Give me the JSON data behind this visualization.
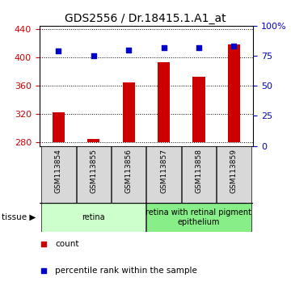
{
  "title": "GDS2556 / Dr.18415.1.A1_at",
  "samples": [
    "GSM113854",
    "GSM113855",
    "GSM113856",
    "GSM113857",
    "GSM113858",
    "GSM113859"
  ],
  "counts": [
    322,
    285,
    365,
    393,
    373,
    418
  ],
  "percentiles": [
    79,
    75,
    80,
    82,
    82,
    83
  ],
  "ylim_left": [
    275,
    445
  ],
  "ylim_right": [
    0,
    100
  ],
  "yticks_left": [
    280,
    320,
    360,
    400,
    440
  ],
  "yticks_right": [
    0,
    25,
    50,
    75,
    100
  ],
  "yticklabels_right": [
    "0",
    "25",
    "50",
    "75",
    "100%"
  ],
  "bar_color": "#cc0000",
  "dot_color": "#0000cc",
  "bar_bottom": 280,
  "tissue_groups": [
    {
      "label": "retina",
      "samples": [
        0,
        1,
        2
      ],
      "color": "#ccffcc"
    },
    {
      "label": "retina with retinal pigment\nepithelium",
      "samples": [
        3,
        4,
        5
      ],
      "color": "#88ee88"
    }
  ],
  "legend_items": [
    {
      "label": "count",
      "color": "#cc0000"
    },
    {
      "label": "percentile rank within the sample",
      "color": "#0000cc"
    }
  ],
  "title_fontsize": 10,
  "tick_fontsize": 8,
  "sample_fontsize": 6.5,
  "tissue_fontsize": 7,
  "legend_fontsize": 7.5
}
